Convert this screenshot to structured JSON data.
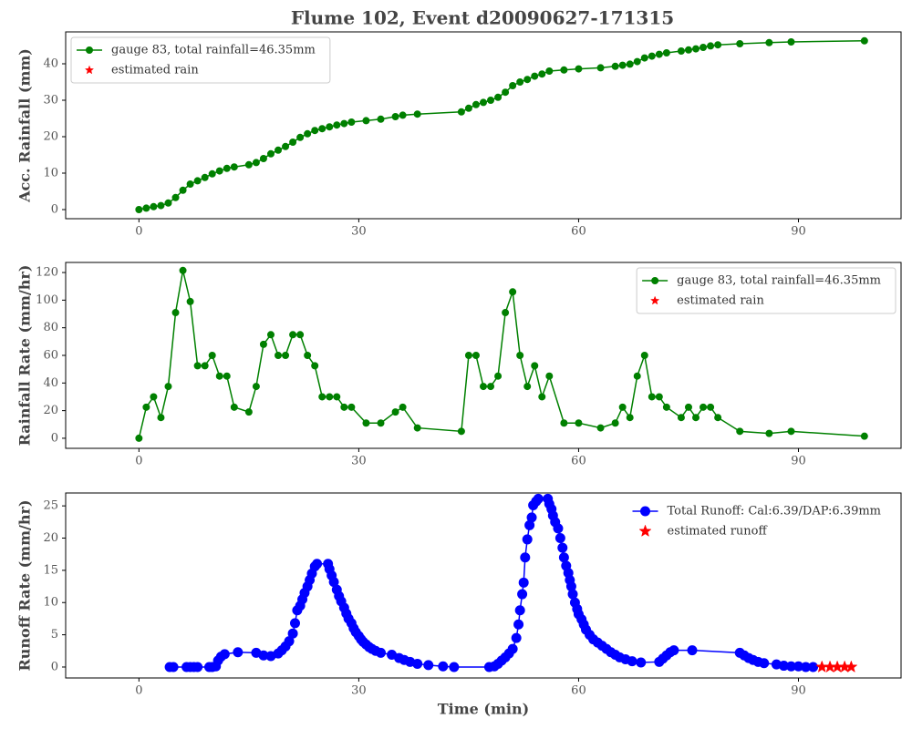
{
  "chart_data": [
    {
      "type": "line",
      "title": "Flume 102, Event d20090627-171315",
      "ylabel": "Acc. Rainfall (mm)",
      "xlim": [
        -10,
        104
      ],
      "xticks": [
        0,
        30,
        60,
        90
      ],
      "ylim": [
        -2.5,
        48.75
      ],
      "yticks": [
        0,
        10,
        20,
        30,
        40
      ],
      "legend": "upper left",
      "legend_frame": true,
      "series": [
        {
          "name": "gauge 83, total rainfall=46.35mm",
          "color": "#008000",
          "marker": "circle",
          "x": [
            0,
            1,
            2,
            3,
            4,
            5,
            6,
            7,
            8,
            9,
            10,
            11,
            12,
            13,
            15,
            16,
            17,
            18,
            19,
            20,
            21,
            22,
            23,
            24,
            25,
            26,
            27,
            28,
            29,
            31,
            33,
            35,
            36,
            38,
            44,
            45,
            46,
            47,
            48,
            49,
            50,
            51,
            52,
            53,
            54,
            55,
            56,
            58,
            60,
            63,
            65,
            66,
            67,
            68,
            69,
            70,
            71,
            72,
            74,
            75,
            76,
            77,
            78,
            79,
            82,
            86,
            89,
            99
          ],
          "values": [
            0,
            0.4,
            0.8,
            1.1,
            1.8,
            3.3,
            5.3,
            7,
            7.9,
            8.8,
            9.8,
            10.6,
            11.3,
            11.7,
            12.3,
            12.9,
            14,
            15.3,
            16.3,
            17.3,
            18.5,
            19.8,
            20.8,
            21.7,
            22.2,
            22.7,
            23.2,
            23.6,
            24,
            24.4,
            24.8,
            25.5,
            25.9,
            26.2,
            26.8,
            27.8,
            28.8,
            29.4,
            30,
            30.8,
            32.2,
            34,
            35,
            35.7,
            36.6,
            37.2,
            38,
            38.3,
            38.6,
            38.9,
            39.3,
            39.6,
            39.9,
            40.6,
            41.6,
            42.1,
            42.6,
            43,
            43.5,
            43.8,
            44.1,
            44.5,
            44.9,
            45.2,
            45.5,
            45.8,
            46,
            46.3
          ]
        },
        {
          "name": "estimated rain",
          "color": "#ff0000",
          "marker": "star",
          "x": [],
          "values": []
        }
      ]
    },
    {
      "type": "line",
      "ylabel": "Rainfall Rate (mm/hr)",
      "xlim": [
        -10,
        104
      ],
      "xticks": [
        0,
        30,
        60,
        90
      ],
      "ylim": [
        -7.3,
        127.3
      ],
      "yticks": [
        0,
        20,
        40,
        60,
        80,
        100,
        120
      ],
      "legend": "upper right",
      "legend_frame": true,
      "series": [
        {
          "name": "gauge 83, total rainfall=46.35mm",
          "color": "#008000",
          "marker": "circle",
          "x": [
            0,
            1,
            2,
            3,
            4,
            5,
            6,
            7,
            8,
            9,
            10,
            11,
            12,
            13,
            15,
            16,
            17,
            18,
            19,
            20,
            21,
            22,
            23,
            24,
            25,
            26,
            27,
            28,
            29,
            31,
            33,
            35,
            36,
            38,
            44,
            45,
            46,
            47,
            48,
            49,
            50,
            51,
            52,
            53,
            54,
            55,
            56,
            58,
            60,
            63,
            65,
            66,
            67,
            68,
            69,
            70,
            71,
            72,
            74,
            75,
            76,
            77,
            78,
            79,
            82,
            86,
            89,
            99
          ],
          "values": [
            0,
            22.5,
            30,
            15,
            37.5,
            91,
            121.5,
            99,
            52.5,
            52.5,
            60,
            45,
            45,
            22.5,
            19,
            37.5,
            68,
            75,
            60,
            60,
            75,
            75,
            60,
            52.5,
            30,
            30,
            30,
            22.5,
            22.5,
            11,
            11,
            19,
            22.5,
            7.5,
            5,
            60,
            60,
            37.5,
            37.5,
            45,
            91,
            106,
            60,
            37.5,
            52.5,
            30,
            45,
            11,
            11,
            7.5,
            11,
            22.5,
            15,
            45,
            60,
            30,
            30,
            22.5,
            15,
            22.5,
            15,
            22.5,
            22.5,
            15,
            5,
            3.5,
            5,
            1.5
          ]
        },
        {
          "name": "estimated rain",
          "color": "#ff0000",
          "marker": "star",
          "x": [],
          "values": []
        }
      ]
    },
    {
      "type": "line",
      "ylabel": "Runoff Rate (mm/hr)",
      "xlabel": "Time (min)",
      "xlim": [
        -10,
        104
      ],
      "xticks": [
        0,
        30,
        60,
        90
      ],
      "ylim": [
        -1.7,
        27
      ],
      "yticks": [
        0,
        5,
        10,
        15,
        20,
        25
      ],
      "legend": "upper right",
      "legend_frame": false,
      "series": [
        {
          "name": "Total Runoff: Cal:6.39/DAP:6.39mm",
          "color": "#0000ff",
          "marker": "circle",
          "x": [
            4.2,
            4.7,
            6.5,
            7,
            7.5,
            8,
            9.6,
            10,
            10.5,
            10.8,
            11.2,
            11.7,
            13.5,
            16,
            17,
            18,
            19,
            19.5,
            20,
            20.5,
            21,
            21.3,
            21.6,
            22,
            22.3,
            22.6,
            23,
            23.3,
            23.6,
            24,
            24.3,
            25.8,
            26,
            26.3,
            26.6,
            27,
            27.3,
            27.6,
            28,
            28.3,
            28.6,
            29,
            29.3,
            29.6,
            30,
            30.3,
            30.6,
            31,
            31.4,
            31.8,
            32.3,
            33,
            34.5,
            35.5,
            36.2,
            37,
            38,
            39.5,
            41.5,
            43,
            47.8,
            48.5,
            49,
            49.5,
            50,
            50.5,
            51,
            51.5,
            51.8,
            52,
            52.3,
            52.5,
            52.7,
            53,
            53.3,
            53.6,
            53.8,
            54.2,
            54.5,
            55.8,
            56,
            56.3,
            56.5,
            56.8,
            57.2,
            57.5,
            57.8,
            58,
            58.3,
            58.6,
            58.8,
            59,
            59.2,
            59.5,
            59.8,
            60,
            60.4,
            60.7,
            61,
            61.5,
            62,
            62.6,
            63.2,
            63.8,
            64.4,
            65,
            65.6,
            66.4,
            67.3,
            68.5,
            71,
            71.5,
            72,
            72.5,
            73,
            75.5,
            82,
            82.6,
            83.2,
            83.8,
            84.5,
            85.3,
            87,
            88,
            89,
            90,
            91,
            92
          ],
          "values": [
            0,
            0,
            0,
            0,
            0,
            0,
            0,
            0,
            0.1,
            1,
            1.6,
            2,
            2.3,
            2.2,
            1.8,
            1.7,
            2.1,
            2.6,
            3.2,
            4,
            5.2,
            6.8,
            8.8,
            9.5,
            10.5,
            11.5,
            12.5,
            13.5,
            14.5,
            15.6,
            16,
            16,
            15.2,
            14.2,
            13.2,
            12,
            11,
            10.2,
            9.2,
            8.3,
            7.5,
            6.8,
            6,
            5.4,
            4.8,
            4.3,
            3.9,
            3.5,
            3.1,
            2.8,
            2.5,
            2.2,
            1.9,
            1.4,
            1.1,
            0.8,
            0.5,
            0.3,
            0.1,
            0,
            0,
            0.1,
            0.5,
            1,
            1.5,
            2.1,
            2.8,
            4.5,
            6.6,
            8.8,
            11.3,
            13.1,
            17,
            19.8,
            22,
            23.2,
            25.1,
            25.7,
            26.1,
            26.1,
            25.3,
            24.5,
            23.5,
            22.5,
            21.5,
            20,
            18.5,
            17,
            15.7,
            14.6,
            13.5,
            12.5,
            11.3,
            10,
            9,
            8.2,
            7.4,
            6.6,
            5.8,
            5,
            4.3,
            3.8,
            3.3,
            2.8,
            2.3,
            1.9,
            1.5,
            1.2,
            0.9,
            0.7,
            0.8,
            1.3,
            1.8,
            2.3,
            2.6,
            2.6,
            2.2,
            1.8,
            1.4,
            1.1,
            0.8,
            0.6,
            0.4,
            0.2,
            0.1,
            0.1,
            0,
            0
          ]
        },
        {
          "name": "estimated runoff",
          "color": "#ff0000",
          "marker": "star",
          "x": [
            93.2,
            94.3,
            95.3,
            96.3,
            97.2
          ],
          "values": [
            0,
            0,
            0,
            0,
            0
          ]
        }
      ]
    }
  ]
}
